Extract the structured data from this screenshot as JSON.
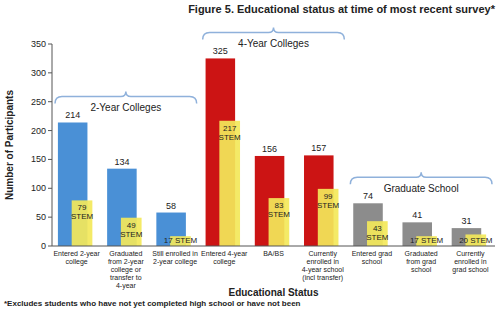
{
  "chart_data": {
    "type": "bar",
    "title": "Figure 5. Educational status at time of most recent survey*",
    "x_label": "Educational Status",
    "y_label": "Number of Participants",
    "footnote": "*Excludes students who have not yet completed high school or have not been",
    "categories": [
      "Entered 2-year college",
      "Graduated from 2-year college or transfer to 4-year",
      "Still enrolled in 2-year college",
      "Entered 4-year college",
      "BA/BS",
      "Currently enrolled in 4-year school (incl transfer)",
      "Entered grad school",
      "Graduated from grad school",
      "Currently enrolled in grad school"
    ],
    "series": [
      {
        "values": [
          214,
          134,
          58,
          325,
          156,
          157,
          74,
          41,
          31
        ],
        "colors": [
          "#4a90d6",
          "#4a90d6",
          "#4a90d6",
          "#cc1414",
          "#cc1414",
          "#cc1414",
          "#8c8c8c",
          "#8c8c8c",
          "#8c8c8c"
        ]
      },
      {
        "values": [
          79,
          49,
          17,
          217,
          83,
          99,
          43,
          17,
          20
        ],
        "value_labels": [
          "79 STEM",
          "49 STEM",
          "17 STEM",
          "217 STEM",
          "83 STEM",
          "99 STEM",
          "43 STEM",
          "17 STEM",
          "20 STEM"
        ],
        "color": "#f3e85a"
      }
    ],
    "groups": [
      {
        "label": "2-Year Colleges",
        "first": 0,
        "last": 2
      },
      {
        "label": "4-Year Colleges",
        "first": 3,
        "last": 5
      },
      {
        "label": "Graduate School",
        "first": 6,
        "last": 8
      }
    ],
    "ylim": [
      0,
      350
    ],
    "yticks": [
      0,
      50,
      100,
      150,
      200,
      250,
      300,
      350
    ],
    "grid": false,
    "data_labels": true
  }
}
